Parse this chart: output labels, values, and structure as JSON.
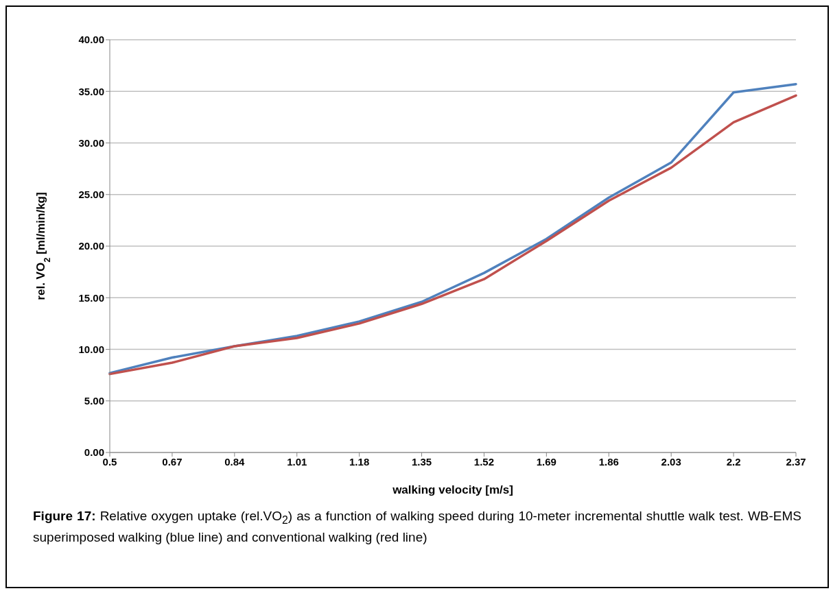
{
  "chart_data": {
    "type": "line",
    "xlabel": "walking velocity [m/s]",
    "ylabel": "rel. VO$_{2}$ [ml/min/kg]",
    "categories": [
      "0.5",
      "0.67",
      "0.84",
      "1.01",
      "1.18",
      "1.35",
      "1.52",
      "1.69",
      "1.86",
      "2.03",
      "2.2",
      "2.37"
    ],
    "series": [
      {
        "color": "#4f81bd",
        "values": [
          7.7,
          9.2,
          10.3,
          11.3,
          12.7,
          14.6,
          17.4,
          20.7,
          24.7,
          28.1,
          34.9,
          35.7
        ]
      },
      {
        "color": "#c0504d",
        "values": [
          7.6,
          8.7,
          10.3,
          11.1,
          12.5,
          14.4,
          16.8,
          20.5,
          24.4,
          27.6,
          32.0,
          34.6
        ]
      }
    ],
    "ylim": [
      0,
      40
    ],
    "yticks": [
      {
        "value": 0,
        "label": "0.00"
      },
      {
        "value": 5,
        "label": "5.00"
      },
      {
        "value": 10,
        "label": "10.00"
      },
      {
        "value": 15,
        "label": "15.00"
      },
      {
        "value": 20,
        "label": "20.00"
      },
      {
        "value": 25,
        "label": "25.00"
      },
      {
        "value": 30,
        "label": "30.00"
      },
      {
        "value": 35,
        "label": "35.00"
      },
      {
        "value": 40,
        "label": "40.00"
      }
    ],
    "grid": "y",
    "marker": "none",
    "line_style": "solid",
    "legend": false,
    "annotations": [
      "Figure 17: Relative oxygen uptake (rel.VO$_{2}$) as a function of walking speed during 10-meter incremental shuttle walk test. WB-EMS superimposed walking (blue line) and conventional walking (red line)"
    ]
  }
}
